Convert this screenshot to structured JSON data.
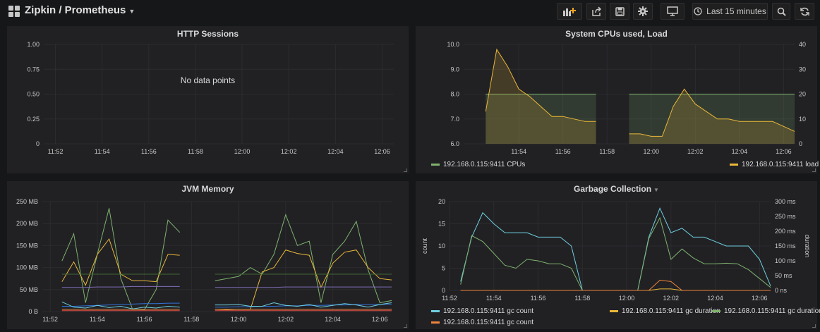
{
  "navbar": {
    "title": "Zipkin / Prometheus",
    "time_range": "Last 15 minutes",
    "icons": [
      "add-panel-icon",
      "share-icon",
      "save-icon",
      "settings-icon",
      "tv-mode-icon",
      "clock-icon",
      "zoom-out-icon",
      "refresh-icon"
    ]
  },
  "panels": {
    "http_sessions": {
      "title": "HTTP Sessions",
      "no_data": "No data points"
    },
    "system_cpus": {
      "title": "System CPUs used, Load"
    },
    "jvm_memory": {
      "title": "JVM Memory"
    },
    "gc": {
      "title": "Garbage Collection"
    }
  },
  "chart_data": [
    {
      "type": "line",
      "title": "HTTP Sessions",
      "x_ticks": [
        "11:52",
        "11:54",
        "11:56",
        "11:58",
        "12:00",
        "12:02",
        "12:04",
        "12:06"
      ],
      "y_ticks": [
        "0",
        "0.25",
        "0.50",
        "0.75",
        "1.00"
      ],
      "ylim": [
        0,
        1
      ],
      "grid": true,
      "series": [],
      "annotation": "No data points"
    },
    {
      "type": "area",
      "title": "System CPUs used, Load",
      "x_ticks": [
        "11:54",
        "11:56",
        "11:58",
        "12:00",
        "12:02",
        "12:04",
        "12:06"
      ],
      "y_ticks_left": [
        "6.0",
        "7.0",
        "8.0",
        "9.0",
        "10.0"
      ],
      "y_ticks_right": [
        "0",
        "10",
        "20",
        "30",
        "40"
      ],
      "ylim_left": [
        6,
        10
      ],
      "ylim_right": [
        0,
        40
      ],
      "x_range": [
        "11:51:30",
        "12:06:30"
      ],
      "grid": true,
      "legend_position": "bottom",
      "series": [
        {
          "name": "192.168.0.115:9411 CPUs",
          "color": "#7eb26d",
          "axis": "left",
          "x": [
            "11:52:30",
            "11:53",
            "11:53:30",
            "11:54",
            "11:54:30",
            "11:55",
            "11:55:30",
            "11:56",
            "11:56:30",
            "11:57",
            "11:57:30",
            null,
            "11:59",
            "11:59:30",
            "12:00",
            "12:00:30",
            "12:01",
            "12:01:30",
            "12:02",
            "12:02:30",
            "12:03",
            "12:03:30",
            "12:04",
            "12:04:30",
            "12:05",
            "12:05:30",
            "12:06",
            "12:06:30"
          ],
          "values": [
            8,
            8,
            8,
            8,
            8,
            8,
            8,
            8,
            8,
            8,
            8,
            null,
            8,
            8,
            8,
            8,
            8,
            8,
            8,
            8,
            8,
            8,
            8,
            8,
            8,
            8,
            8,
            8
          ]
        },
        {
          "name": "192.168.0.115:9411 load",
          "color": "#eab839",
          "axis": "right",
          "x": [
            "11:52:30",
            "11:53",
            "11:53:30",
            "11:54",
            "11:54:30",
            "11:55",
            "11:55:30",
            "11:56",
            "11:56:30",
            "11:57",
            "11:57:30",
            null,
            "11:59",
            "11:59:30",
            "12:00",
            "12:00:30",
            "12:01",
            "12:01:30",
            "12:02",
            "12:02:30",
            "12:03",
            "12:03:30",
            "12:04",
            "12:04:30",
            "12:05",
            "12:05:30",
            "12:06",
            "12:06:30"
          ],
          "values": [
            13,
            38,
            31,
            22,
            19,
            15,
            11,
            11,
            10,
            9,
            9,
            null,
            4,
            4,
            3,
            3,
            15,
            22,
            16,
            13,
            10,
            10,
            9,
            9,
            9,
            9,
            7,
            5
          ]
        }
      ]
    },
    {
      "type": "line",
      "title": "JVM Memory",
      "x_ticks": [
        "11:52",
        "11:54",
        "11:56",
        "11:58",
        "12:00",
        "12:02",
        "12:04",
        "12:06"
      ],
      "y_ticks": [
        "0 B",
        "50 MB",
        "100 MB",
        "150 MB",
        "200 MB",
        "250 MB"
      ],
      "ylim": [
        0,
        250
      ],
      "y_unit": "MB",
      "x_range": [
        "11:51:40",
        "12:06:30"
      ],
      "grid": true,
      "series": [
        {
          "color": "#7eb26d",
          "x": [
            "11:52:30",
            "11:53",
            "11:53:30",
            "11:54",
            "11:54:30",
            "11:55",
            "11:55:30",
            "11:56",
            "11:56:30",
            "11:57",
            "11:57:30",
            null,
            "11:59",
            "11:59:30",
            "12:00",
            "12:00:30",
            "12:01",
            "12:01:30",
            "12:02",
            "12:02:30",
            "12:03",
            "12:03:30",
            "12:04",
            "12:04:30",
            "12:05",
            "12:05:30",
            "12:06",
            "12:06:30"
          ],
          "values": [
            115,
            177,
            20,
            130,
            235,
            75,
            5,
            4,
            50,
            208,
            180,
            null,
            70,
            75,
            80,
            100,
            85,
            130,
            220,
            150,
            160,
            20,
            130,
            160,
            205,
            95,
            20,
            25
          ]
        },
        {
          "color": "#eab839",
          "x": [
            "11:52:30",
            "11:53",
            "11:53:30",
            "11:54",
            "11:54:30",
            "11:55",
            "11:55:30",
            "11:56",
            "11:56:30",
            "11:57",
            "11:57:30",
            null,
            "11:59",
            "11:59:30",
            "12:00",
            "12:00:30",
            "12:01",
            "12:01:30",
            "12:02",
            "12:02:30",
            "12:03",
            "12:03:30",
            "12:04",
            "12:04:30",
            "12:05",
            "12:05:30",
            "12:06",
            "12:06:30"
          ],
          "values": [
            68,
            113,
            60,
            130,
            165,
            85,
            70,
            70,
            68,
            130,
            128,
            null,
            5,
            4,
            5,
            5,
            90,
            100,
            140,
            132,
            128,
            55,
            110,
            135,
            140,
            100,
            75,
            72
          ]
        },
        {
          "color": "#3f6833",
          "values": [
            85,
            85,
            85,
            85,
            85,
            85,
            85,
            85,
            85,
            85,
            85,
            null,
            85,
            85,
            85,
            85,
            85,
            85,
            85,
            85,
            85,
            85,
            85,
            85,
            85,
            85,
            85,
            85
          ]
        },
        {
          "color": "#806eb7",
          "values": [
            55,
            55,
            55,
            56,
            56,
            56,
            57,
            57,
            57,
            57,
            57,
            null,
            55,
            55,
            55,
            55,
            55,
            55,
            56,
            56,
            56,
            56,
            56,
            56,
            56,
            56,
            56,
            56
          ]
        },
        {
          "color": "#3274d9",
          "values": [
            12,
            12,
            13,
            14,
            15,
            16,
            17,
            18,
            18,
            19,
            19,
            null,
            10,
            10,
            11,
            11,
            12,
            12,
            13,
            13,
            14,
            14,
            15,
            15,
            16,
            16,
            16,
            17
          ]
        },
        {
          "color": "#6ed0e0",
          "values": [
            22,
            10,
            8,
            14,
            9,
            12,
            6,
            10,
            8,
            12,
            10,
            null,
            15,
            15,
            16,
            12,
            12,
            20,
            14,
            12,
            16,
            10,
            14,
            18,
            15,
            10,
            16,
            20
          ]
        },
        {
          "color": "#ef843c",
          "values": [
            5,
            5,
            5,
            5,
            5,
            5,
            5,
            5,
            5,
            5,
            5,
            null,
            5,
            5,
            5,
            5,
            5,
            5,
            5,
            5,
            5,
            5,
            5,
            5,
            5,
            5,
            5,
            5
          ]
        },
        {
          "color": "#e24d42",
          "values": [
            2,
            2,
            2,
            2,
            2,
            2,
            2,
            2,
            2,
            2,
            2,
            null,
            2,
            2,
            2,
            2,
            2,
            2,
            2,
            2,
            2,
            2,
            2,
            2,
            2,
            2,
            2,
            2
          ]
        }
      ]
    },
    {
      "type": "line",
      "title": "Garbage Collection",
      "x_ticks": [
        "11:52",
        "11:54",
        "11:56",
        "11:58",
        "12:00",
        "12:02",
        "12:04",
        "12:06"
      ],
      "y_ticks_left": [
        "0",
        "5",
        "10",
        "15",
        "20"
      ],
      "y_ticks_right": [
        "0 ns",
        "50 ms",
        "100 ms",
        "150 ms",
        "200 ms",
        "250 ms",
        "300 ms"
      ],
      "ylabel_left": "count",
      "ylabel_right": "duration",
      "ylim_left": [
        0,
        20
      ],
      "ylim_right": [
        0,
        300
      ],
      "x_range": [
        "11:52",
        "12:06:30"
      ],
      "grid": true,
      "legend_position": "bottom",
      "series": [
        {
          "name": "192.168.0.115:9411 gc count",
          "color": "#6ed0e0",
          "axis": "left",
          "x": [
            "11:52:30",
            "11:53",
            "11:53:30",
            "11:54",
            "11:54:30",
            "11:55",
            "11:55:30",
            "11:56",
            "11:56:30",
            "11:57",
            "11:57:30",
            "11:58",
            "11:58:30",
            "11:59",
            "11:59:30",
            "12:00",
            "12:00:30",
            "12:01",
            "12:01:30",
            "12:02",
            "12:02:30",
            "12:03",
            "12:03:30",
            "12:04",
            "12:04:30",
            "12:05",
            "12:05:30",
            "12:06",
            "12:06:30"
          ],
          "values": [
            2,
            12,
            17.5,
            15,
            13,
            13,
            13,
            12,
            12,
            12,
            10,
            0,
            0,
            0,
            0,
            0,
            0,
            12,
            18.5,
            13,
            14,
            12,
            12,
            11,
            10,
            10,
            10,
            7,
            1
          ]
        },
        {
          "name": "192.168.0.115:9411 gc duration",
          "color": "#eab839",
          "axis": "right",
          "x": [
            "11:52:30",
            "11:53",
            "11:53:30",
            "11:54",
            "11:54:30",
            "11:55",
            "11:55:30",
            "11:56",
            "11:56:30",
            "11:57",
            "11:57:30",
            "11:58",
            "11:58:30",
            "11:59",
            "11:59:30",
            "12:00",
            "12:00:30",
            "12:01",
            "12:01:30",
            "12:02",
            "12:02:30",
            "12:03",
            "12:03:30",
            "12:04",
            "12:04:30",
            "12:05",
            "12:05:30",
            "12:06",
            "12:06:30"
          ],
          "values": [
            0,
            0,
            0,
            0,
            0,
            0,
            0,
            0,
            0,
            0,
            0,
            0,
            0,
            0,
            0,
            0,
            0,
            0,
            5,
            5,
            0,
            0,
            0,
            0,
            0,
            0,
            0,
            0,
            0
          ]
        },
        {
          "name": "192.168.0.115:9411 gc duration",
          "color": "#7eb26d",
          "axis": "right",
          "x": [
            "11:52:30",
            "11:53",
            "11:53:30",
            "11:54",
            "11:54:30",
            "11:55",
            "11:55:30",
            "11:56",
            "11:56:30",
            "11:57",
            "11:57:30",
            "11:58",
            "11:58:30",
            "11:59",
            "11:59:30",
            "12:00",
            "12:00:30",
            "12:01",
            "12:01:30",
            "12:02",
            "12:02:30",
            "12:03",
            "12:03:30",
            "12:04",
            "12:04:30",
            "12:05",
            "12:05:30",
            "12:06",
            "12:06:30"
          ],
          "values": [
            20,
            185,
            165,
            125,
            85,
            75,
            105,
            100,
            90,
            90,
            75,
            0,
            0,
            0,
            0,
            0,
            0,
            175,
            245,
            105,
            140,
            110,
            90,
            90,
            92,
            90,
            70,
            40,
            10
          ]
        },
        {
          "name": "192.168.0.115:9411 gc count",
          "color": "#ef843c",
          "axis": "left",
          "x": [
            "11:52:30",
            "11:53",
            "11:53:30",
            "11:54",
            "11:54:30",
            "11:55",
            "11:55:30",
            "11:56",
            "11:56:30",
            "11:57",
            "11:57:30",
            "11:58",
            "11:58:30",
            "11:59",
            "11:59:30",
            "12:00",
            "12:00:30",
            "12:01",
            "12:01:30",
            "12:02",
            "12:02:30",
            "12:03",
            "12:03:30",
            "12:04",
            "12:04:30",
            "12:05",
            "12:05:30",
            "12:06",
            "12:06:30"
          ],
          "values": [
            0,
            0,
            0,
            0,
            0,
            0,
            0,
            0,
            0,
            0,
            0,
            0,
            0,
            0,
            0,
            0,
            0,
            0,
            2.3,
            2,
            0,
            0,
            0,
            0,
            0,
            0,
            0,
            0,
            0
          ]
        }
      ]
    }
  ]
}
